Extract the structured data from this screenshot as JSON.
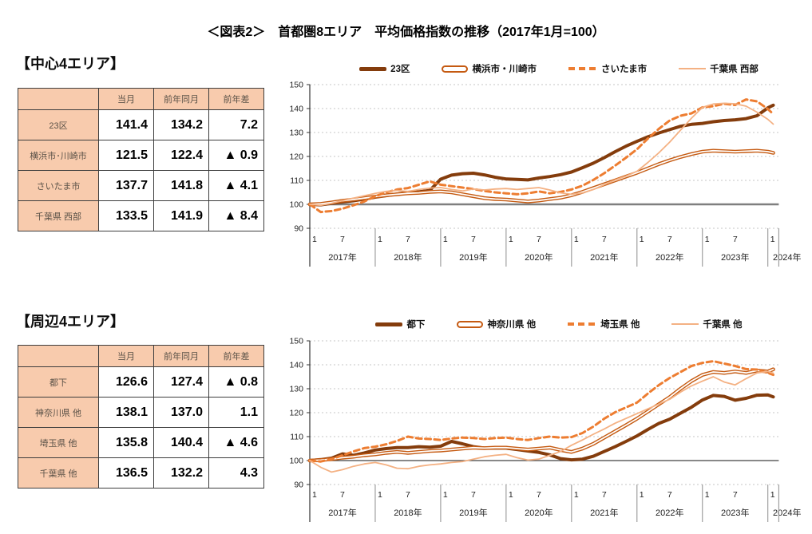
{
  "title": "＜図表2＞　首都圏8エリア　平均価格指数の推移（2017年1月=100）",
  "colors": {
    "dark_brown": "#843C0C",
    "medium_orange": "#C55A11",
    "orange": "#ED7D31",
    "light_orange": "#F4B183",
    "table_header_fill": "#F8CBAD"
  },
  "sections": [
    {
      "heading": "【中心4エリア】",
      "table": {
        "columns": [
          "当月",
          "前年同月",
          "前年差"
        ],
        "rows": [
          {
            "label": "23区",
            "current": "141.4",
            "prev_year": "134.2",
            "diff": "7.2"
          },
          {
            "label": "横浜市･川崎市",
            "current": "121.5",
            "prev_year": "122.4",
            "diff": "▲ 0.9"
          },
          {
            "label": "さいたま市",
            "current": "137.7",
            "prev_year": "141.8",
            "diff": "▲ 4.1"
          },
          {
            "label": "千葉県 西部",
            "current": "133.5",
            "prev_year": "141.9",
            "diff": "▲ 8.4"
          }
        ]
      }
    },
    {
      "heading": "【周辺4エリア】",
      "table": {
        "columns": [
          "当月",
          "前年同月",
          "前年差"
        ],
        "rows": [
          {
            "label": "都下",
            "current": "126.6",
            "prev_year": "127.4",
            "diff": "▲ 0.8"
          },
          {
            "label": "神奈川県 他",
            "current": "138.1",
            "prev_year": "137.0",
            "diff": "1.1"
          },
          {
            "label": "埼玉県 他",
            "current": "135.8",
            "prev_year": "140.4",
            "diff": "▲ 4.6"
          },
          {
            "label": "千葉県 他",
            "current": "136.5",
            "prev_year": "132.2",
            "diff": "4.3"
          }
        ]
      }
    }
  ],
  "chart_data": [
    {
      "type": "line",
      "title": "中心4エリア 平均価格指数の推移",
      "ylim": [
        90,
        150
      ],
      "yticks": [
        90,
        100,
        110,
        120,
        130,
        140,
        150
      ],
      "baseline": 100,
      "grid": "dotted-horizontal",
      "legend_position": "top",
      "years": [
        "2017年",
        "2018年",
        "2019年",
        "2020年",
        "2021年",
        "2022年",
        "2023年",
        "2024年"
      ],
      "x_tick_labels": [
        "1",
        "7"
      ],
      "x_unit": "months since 2017-01 (index 0), sampled Jan/Mar/May/Jul/Sep/Nov + 2024 Jan,Feb",
      "x_indices": [
        0,
        2,
        4,
        6,
        8,
        10,
        12,
        14,
        16,
        18,
        20,
        22,
        24,
        26,
        28,
        30,
        32,
        34,
        36,
        38,
        40,
        42,
        44,
        46,
        48,
        50,
        52,
        54,
        56,
        58,
        60,
        62,
        64,
        66,
        68,
        70,
        72,
        74,
        76,
        78,
        80,
        82,
        84,
        85
      ],
      "series": [
        {
          "key": "tokyo23",
          "name": "23区",
          "style": "thick",
          "color": "#843C0C",
          "values": [
            100,
            99.8,
            100.4,
            101,
            101.5,
            102.2,
            103,
            103.6,
            104.3,
            105,
            105.2,
            105.8,
            110.5,
            112.2,
            112.8,
            113,
            112.3,
            111.3,
            110.6,
            110.4,
            110.2,
            111,
            111.6,
            112.4,
            113.5,
            115.3,
            117.2,
            119.5,
            122,
            124.3,
            126.3,
            128.2,
            129.8,
            131.2,
            132.6,
            133.4,
            133.8,
            134.5,
            135,
            135.3,
            135.8,
            137,
            140.3,
            141.4
          ]
        },
        {
          "key": "yokohama-kawasaki",
          "name": "横浜市・川崎市",
          "style": "double",
          "color": "#C55A11",
          "values": [
            100,
            100.2,
            100.8,
            101.5,
            102,
            102.6,
            103.2,
            103.8,
            104.2,
            104.6,
            104.8,
            105.2,
            105.4,
            105,
            104.2,
            103.4,
            102.6,
            102.2,
            102,
            101.6,
            101.2,
            101.6,
            102.2,
            102.8,
            103.8,
            105.2,
            106.8,
            108.4,
            110,
            111.6,
            113.2,
            115,
            116.8,
            118.4,
            119.8,
            121,
            122,
            122.4,
            122.2,
            122,
            122.2,
            122.4,
            122,
            121.5
          ]
        },
        {
          "key": "saitama-city",
          "name": "さいたま市",
          "style": "dashed",
          "color": "#ED7D31",
          "values": [
            100,
            96.8,
            97.2,
            98.2,
            99.6,
            101.2,
            103.4,
            105,
            106.2,
            106.8,
            108.2,
            109.6,
            108.2,
            107.6,
            107,
            106.4,
            105.6,
            105,
            104.6,
            104.2,
            104.6,
            105.4,
            104.6,
            105.2,
            106.2,
            107.8,
            110.2,
            113,
            116.2,
            119.5,
            123,
            127.5,
            131.5,
            135,
            137,
            138,
            140.5,
            141,
            142,
            141.5,
            143.8,
            143,
            139.8,
            137.7
          ]
        },
        {
          "key": "chiba-west",
          "name": "千葉県 西部",
          "style": "thin",
          "color": "#F4B183",
          "values": [
            100,
            99.6,
            100.4,
            101.6,
            102.6,
            103.6,
            104.6,
            105.4,
            105.8,
            105.4,
            106.2,
            106.8,
            107,
            106.2,
            105.6,
            106.4,
            106,
            106.4,
            106.6,
            106.2,
            106.6,
            107,
            106,
            104.8,
            104.2,
            104.8,
            106.2,
            108.2,
            110.2,
            111.8,
            113.8,
            117.5,
            121.5,
            126,
            131,
            136,
            140.5,
            141.9,
            142.2,
            142,
            141,
            138.5,
            135.5,
            133.5
          ]
        }
      ]
    },
    {
      "type": "line",
      "title": "周辺4エリア 平均価格指数の推移",
      "ylim": [
        90,
        150
      ],
      "yticks": [
        90,
        100,
        110,
        120,
        130,
        140,
        150
      ],
      "baseline": 100,
      "grid": "dotted-horizontal",
      "legend_position": "top",
      "years": [
        "2017年",
        "2018年",
        "2019年",
        "2020年",
        "2021年",
        "2022年",
        "2023年",
        "2024年"
      ],
      "x_tick_labels": [
        "1",
        "7"
      ],
      "x_unit": "months since 2017-01 (index 0), sampled Jan/Mar/May/Jul/Sep/Nov + 2024 Jan,Feb",
      "x_indices": [
        0,
        2,
        4,
        6,
        8,
        10,
        12,
        14,
        16,
        18,
        20,
        22,
        24,
        26,
        28,
        30,
        32,
        34,
        36,
        38,
        40,
        42,
        44,
        46,
        48,
        50,
        52,
        54,
        56,
        58,
        60,
        62,
        64,
        66,
        68,
        70,
        72,
        74,
        76,
        78,
        80,
        82,
        84,
        85
      ],
      "series": [
        {
          "key": "tama",
          "name": "都下",
          "style": "thick",
          "color": "#843C0C",
          "values": [
            100,
            100.4,
            101,
            102.8,
            102.2,
            103.2,
            104.4,
            105,
            105.4,
            105.4,
            105.8,
            105.6,
            106,
            108,
            107,
            105.8,
            105.2,
            105.2,
            105.2,
            104.6,
            104,
            103.4,
            102.4,
            100.8,
            100.3,
            100.6,
            101.8,
            103.8,
            105.8,
            108,
            110.3,
            113,
            115.5,
            117.3,
            119.8,
            122.3,
            125.3,
            127.2,
            126.8,
            125.2,
            126,
            127.3,
            127.4,
            126.6
          ]
        },
        {
          "key": "kanagawa-other",
          "name": "神奈川県 他",
          "style": "double",
          "color": "#C55A11",
          "values": [
            100,
            100.2,
            100.6,
            101.2,
            101.6,
            102.2,
            102.6,
            103.2,
            103.6,
            103.2,
            103.6,
            104,
            104.2,
            104.6,
            105,
            105.4,
            105.2,
            105.4,
            105.4,
            105,
            104.6,
            105,
            105.4,
            104.4,
            103.6,
            105,
            107,
            109.6,
            112.2,
            114.8,
            117.5,
            120.5,
            123.5,
            126.5,
            130,
            133.2,
            135.8,
            137,
            136.6,
            137.2,
            136.6,
            137.6,
            137.2,
            138.1
          ]
        },
        {
          "key": "saitama-other",
          "name": "埼玉県 他",
          "style": "dashed",
          "color": "#ED7D31",
          "values": [
            100,
            99.6,
            100.6,
            102.2,
            103.8,
            105.2,
            105.8,
            106.8,
            108.2,
            110,
            109.2,
            109,
            108.6,
            109.2,
            109.6,
            109.4,
            109,
            109.4,
            109.6,
            109,
            108.6,
            109.4,
            110,
            109.6,
            109.8,
            111.5,
            114.2,
            117.5,
            120.2,
            122.2,
            124.2,
            128,
            131.5,
            134.5,
            137,
            139.5,
            140.8,
            141.5,
            140.5,
            139.5,
            138.2,
            138,
            136.6,
            135.8
          ]
        },
        {
          "key": "chiba-other",
          "name": "千葉県 他",
          "style": "thin",
          "color": "#F4B183",
          "values": [
            100,
            97.2,
            95.2,
            96.2,
            97.6,
            98.6,
            99.2,
            98.2,
            96.8,
            96.6,
            97.6,
            98.2,
            98.6,
            99.2,
            99.6,
            100.6,
            101.6,
            102.2,
            102.6,
            101.2,
            100.2,
            100.6,
            102.2,
            103.8,
            106.4,
            108.6,
            111,
            113.2,
            115.6,
            117.6,
            119.6,
            121.6,
            123.6,
            125.6,
            128.6,
            131.2,
            133.2,
            135,
            132.8,
            131.6,
            134.2,
            136.6,
            137.2,
            136.5
          ]
        }
      ]
    }
  ]
}
